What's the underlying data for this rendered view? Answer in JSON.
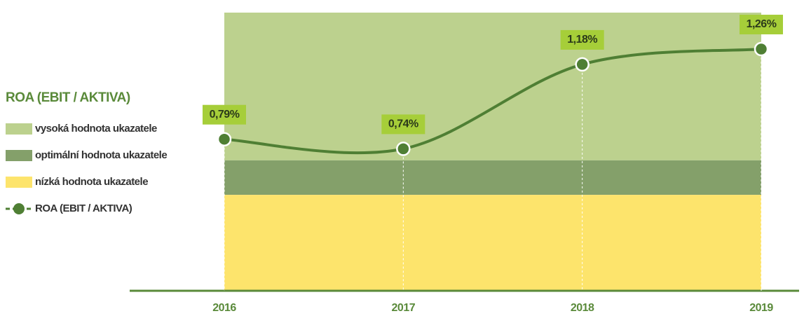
{
  "chart_data": {
    "type": "line",
    "title": "ROA (EBIT / AKTIVA)",
    "categories": [
      "2016",
      "2017",
      "2018",
      "2019"
    ],
    "series": [
      {
        "name": "ROA (EBIT / AKTIVA)",
        "color": "#4f7f34",
        "values": [
          0.79,
          0.74,
          1.18,
          1.26
        ],
        "value_labels": [
          "0,79%",
          "0,74%",
          "1,18%",
          "1,26%"
        ]
      }
    ],
    "bands": [
      {
        "name": "vysoká hodnota ukazatele",
        "color": "#bcd18e",
        "range": [
          0.68,
          1.45
        ]
      },
      {
        "name": "optimální hodnota ukazatele",
        "color": "#84a06a",
        "range": [
          0.5,
          0.68
        ]
      },
      {
        "name": "nízká hodnota ukazatele",
        "color": "#fde46c",
        "range": [
          0,
          0.5
        ]
      }
    ],
    "ylim": [
      0,
      1.45
    ],
    "label_color": "#a6ce39"
  }
}
